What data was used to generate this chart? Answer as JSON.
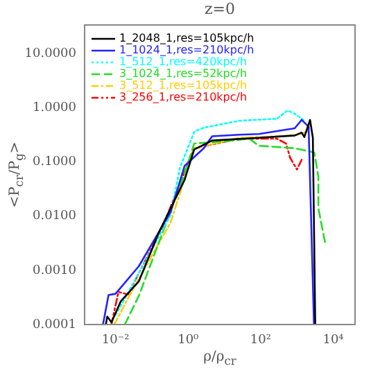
{
  "chart_data": {
    "type": "line",
    "title": "z=0",
    "xlabel": "ρ/ρ$_{cr}$",
    "ylabel": "<P$_{cr}$/P$_{g}$>",
    "log": "xy",
    "grid": false,
    "legend": "top left",
    "marker": "none",
    "xlim": [
      0.0014,
      40000
    ],
    "xticks": [
      {
        "value": 0.01,
        "label": "10⁻²"
      },
      {
        "value": 1,
        "label": "10⁰"
      },
      {
        "value": 100,
        "label": "10²"
      },
      {
        "value": 10000,
        "label": "10⁴"
      }
    ],
    "ylim": [
      0.0001,
      34
    ],
    "yticks": [
      {
        "value": 0.0001,
        "label": "0.0001"
      },
      {
        "value": 0.001,
        "label": "0.0010"
      },
      {
        "value": 0.01,
        "label": "0.0100"
      },
      {
        "value": 0.1,
        "label": "0.1000"
      },
      {
        "value": 1,
        "label": "1.0000"
      },
      {
        "value": 10,
        "label": "10.0000"
      }
    ],
    "series": [
      {
        "name": "1_2048_1,res=105kpc/h",
        "color": "#000000",
        "line_style": "solid",
        "x": [
          0.0054,
          0.0059,
          0.0077,
          0.014,
          0.044,
          0.16,
          0.8,
          1.47,
          4.6,
          89,
          870,
          1350,
          1600,
          2300,
          2750,
          3200
        ],
        "values": [
          0.0001,
          0.00014,
          0.00011,
          0.00027,
          0.00063,
          0.0052,
          0.047,
          0.17,
          0.25,
          0.28,
          0.31,
          0.35,
          0.29,
          0.6,
          0.28,
          0.0001
        ]
      },
      {
        "name": "1_1024_1,res=210kpc/h",
        "color": "#2222ff",
        "line_style": "solid",
        "x": [
          0.0045,
          0.0064,
          0.01,
          0.044,
          0.33,
          0.8,
          2.7,
          4.6,
          26,
          89,
          870,
          1350,
          2100,
          2950
        ],
        "values": [
          0.0001,
          0.00035,
          0.00037,
          0.0012,
          0.012,
          0.085,
          0.18,
          0.3,
          0.32,
          0.33,
          0.42,
          0.6,
          0.45,
          0.0001
        ]
      },
      {
        "name": "1_512_1,res=420kpc/h",
        "color": "#00ffff",
        "line_style": "dotted",
        "x": [
          0.01,
          0.044,
          0.33,
          0.6,
          1.5,
          2.7,
          26,
          280,
          560,
          870,
          1600
        ],
        "values": [
          0.00015,
          0.0009,
          0.0105,
          0.08,
          0.37,
          0.43,
          0.58,
          0.63,
          0.9,
          0.78,
          0.58
        ]
      },
      {
        "name": "3_1024_1,res=52kpc/h",
        "color": "#22dd22",
        "line_style": "dashed",
        "x": [
          0.018,
          0.044,
          0.2,
          0.8,
          1.47,
          8.5,
          49,
          89,
          870,
          3000,
          3900,
          3900,
          6000
        ],
        "values": [
          0.0001,
          0.00034,
          0.0051,
          0.061,
          0.22,
          0.24,
          0.27,
          0.2,
          0.18,
          0.15,
          0.054,
          0.014,
          0.0032
        ]
      },
      {
        "name": "3_512_1,res=105kpc/h",
        "color": "#ffcc00",
        "line_style": "dashdot",
        "x": [
          0.0092,
          0.024,
          0.33,
          1.47,
          26,
          280,
          870,
          1900,
          2300
        ],
        "values": [
          0.0001,
          0.00034,
          0.0077,
          0.18,
          0.28,
          0.3,
          0.31,
          0.36,
          0.54
        ]
      },
      {
        "name": "3_256_1,res=210kpc/h",
        "color": "#ff0000",
        "line_style": "dashdotdot",
        "x": [
          0.0077,
          0.012,
          0.022,
          0.2,
          1.47,
          26,
          280,
          500,
          650,
          1000,
          1350
        ],
        "values": [
          0.0001,
          0.0004,
          0.00036,
          0.0065,
          0.18,
          0.27,
          0.27,
          0.22,
          0.12,
          0.073,
          0.11
        ]
      }
    ]
  }
}
